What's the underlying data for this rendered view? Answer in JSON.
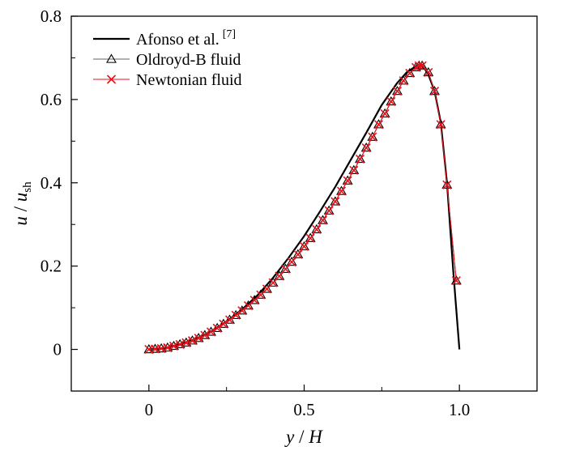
{
  "chart_data": {
    "type": "line",
    "xlabel": {
      "var": "y",
      "sep": " / ",
      "ref": "H"
    },
    "ylabel": {
      "var": "u",
      "sep": " / ",
      "ref": "u",
      "ref_sub": "sh"
    },
    "xlim": [
      -0.25,
      1.25
    ],
    "ylim": [
      -0.1,
      0.8
    ],
    "xticks": [
      0,
      0.5,
      1.0
    ],
    "xtick_labels": [
      "0",
      "0.5",
      "1.0"
    ],
    "yticks": [
      0,
      0.2,
      0.4,
      0.6,
      0.8
    ],
    "ytick_labels": [
      "0",
      "0.2",
      "0.4",
      "0.6",
      "0.8"
    ],
    "grid": false,
    "legend_position": "top-left",
    "series": [
      {
        "name": "Afonso et al.",
        "name_sup": "[7]",
        "style": "line",
        "color": "#000000",
        "x": [
          0,
          0.05,
          0.1,
          0.15,
          0.2,
          0.25,
          0.3,
          0.35,
          0.4,
          0.45,
          0.5,
          0.55,
          0.6,
          0.65,
          0.7,
          0.75,
          0.8,
          0.83,
          0.86,
          0.88,
          0.9,
          0.92,
          0.94,
          0.96,
          0.98,
          1.0
        ],
        "y": [
          0,
          0.003,
          0.012,
          0.025,
          0.043,
          0.067,
          0.096,
          0.13,
          0.172,
          0.22,
          0.272,
          0.33,
          0.39,
          0.455,
          0.52,
          0.587,
          0.64,
          0.665,
          0.68,
          0.683,
          0.66,
          0.62,
          0.545,
          0.4,
          0.19,
          0
        ]
      },
      {
        "name": "Oldroyd-B fluid",
        "style": "line-marker",
        "marker": "triangle-open",
        "color": "#000000",
        "x": [
          0,
          0.02,
          0.04,
          0.06,
          0.08,
          0.1,
          0.12,
          0.14,
          0.16,
          0.18,
          0.2,
          0.22,
          0.24,
          0.26,
          0.28,
          0.3,
          0.32,
          0.34,
          0.36,
          0.38,
          0.4,
          0.42,
          0.44,
          0.46,
          0.48,
          0.5,
          0.52,
          0.54,
          0.56,
          0.58,
          0.6,
          0.62,
          0.64,
          0.66,
          0.68,
          0.7,
          0.72,
          0.74,
          0.76,
          0.78,
          0.8,
          0.82,
          0.84,
          0.86,
          0.87,
          0.88,
          0.9,
          0.92,
          0.94,
          0.96,
          0.99
        ],
        "y": [
          0,
          0.001,
          0.002,
          0.004,
          0.008,
          0.012,
          0.016,
          0.021,
          0.027,
          0.034,
          0.042,
          0.051,
          0.061,
          0.071,
          0.082,
          0.093,
          0.105,
          0.118,
          0.131,
          0.145,
          0.16,
          0.176,
          0.193,
          0.21,
          0.228,
          0.247,
          0.267,
          0.288,
          0.31,
          0.333,
          0.355,
          0.38,
          0.405,
          0.43,
          0.457,
          0.484,
          0.51,
          0.54,
          0.566,
          0.595,
          0.62,
          0.645,
          0.663,
          0.677,
          0.681,
          0.681,
          0.665,
          0.62,
          0.54,
          0.395,
          0.165
        ]
      },
      {
        "name": "Newtonian fluid",
        "style": "line-marker",
        "marker": "cross",
        "color": "#e8131b",
        "x": [
          0,
          0.02,
          0.04,
          0.06,
          0.08,
          0.1,
          0.12,
          0.14,
          0.16,
          0.18,
          0.2,
          0.22,
          0.24,
          0.26,
          0.28,
          0.3,
          0.32,
          0.34,
          0.36,
          0.38,
          0.4,
          0.42,
          0.44,
          0.46,
          0.48,
          0.5,
          0.52,
          0.54,
          0.56,
          0.58,
          0.6,
          0.62,
          0.64,
          0.66,
          0.68,
          0.7,
          0.72,
          0.74,
          0.76,
          0.78,
          0.8,
          0.82,
          0.84,
          0.86,
          0.87,
          0.88,
          0.9,
          0.92,
          0.94,
          0.96,
          0.99
        ],
        "y": [
          0,
          0.001,
          0.002,
          0.004,
          0.008,
          0.012,
          0.016,
          0.021,
          0.027,
          0.034,
          0.042,
          0.051,
          0.061,
          0.071,
          0.082,
          0.093,
          0.105,
          0.118,
          0.131,
          0.145,
          0.16,
          0.176,
          0.193,
          0.21,
          0.228,
          0.247,
          0.267,
          0.288,
          0.31,
          0.333,
          0.355,
          0.38,
          0.405,
          0.43,
          0.457,
          0.484,
          0.51,
          0.54,
          0.566,
          0.595,
          0.62,
          0.645,
          0.663,
          0.677,
          0.681,
          0.681,
          0.665,
          0.62,
          0.54,
          0.395,
          0.165
        ]
      }
    ]
  }
}
